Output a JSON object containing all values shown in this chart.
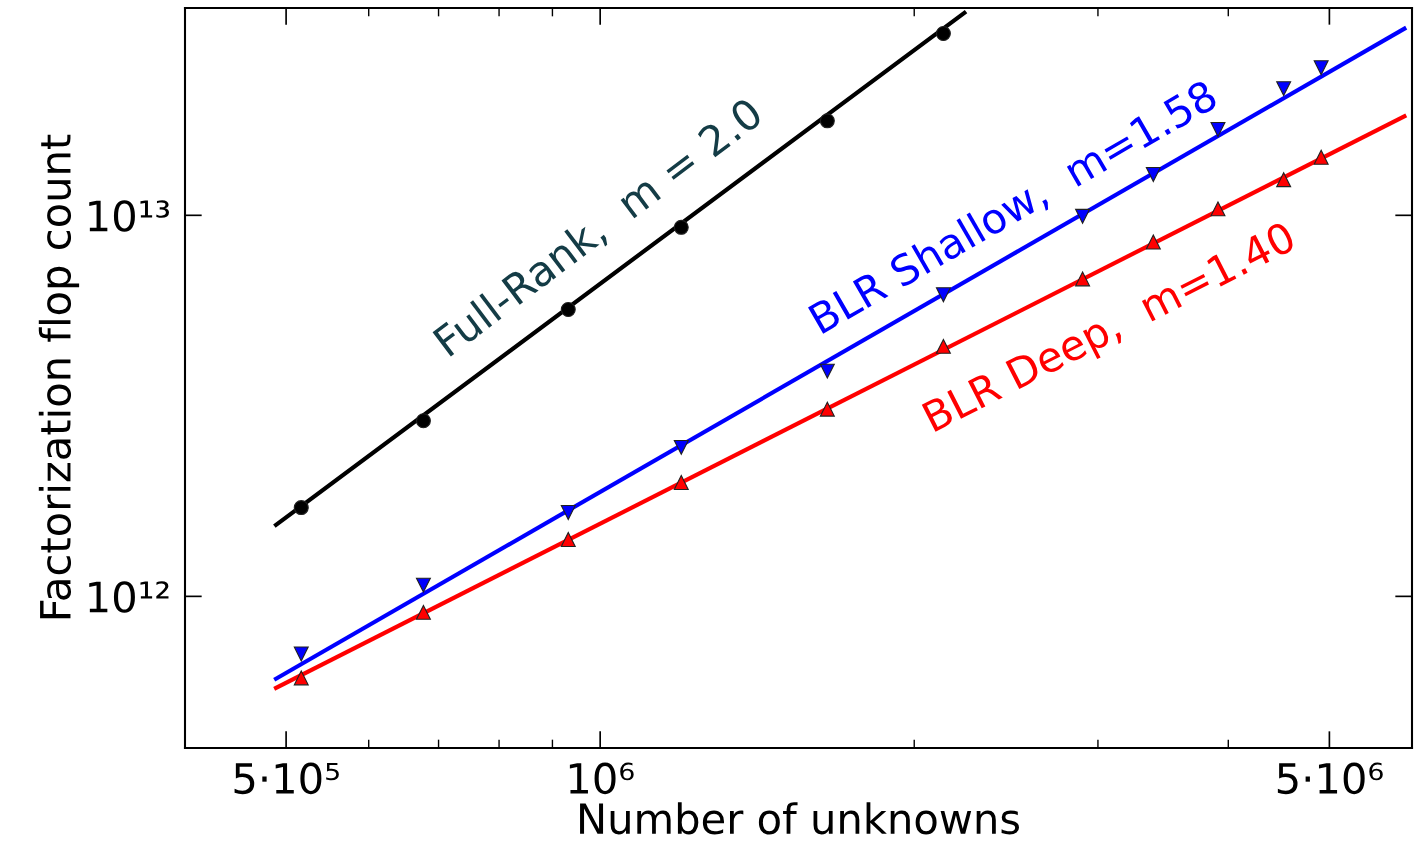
{
  "chart_data": {
    "type": "scatter",
    "xlabel": "Number of unknowns",
    "ylabel": "Factorization flop count",
    "log": "xy",
    "grid": false,
    "legend": false,
    "xlim": [
      400000,
      6000000
    ],
    "ylim": [
      400000000000,
      35000000000000
    ],
    "xticks": [
      {
        "value": 500000,
        "label": "5·10⁵"
      },
      {
        "value": 1000000,
        "label": "10⁶"
      },
      {
        "value": 5000000,
        "label": "5·10⁶"
      }
    ],
    "yticks": [
      {
        "value": 1000000000000,
        "label": "10¹²"
      },
      {
        "value": 10000000000000,
        "label": "10¹³"
      }
    ],
    "series": [
      {
        "type": "line",
        "color": "#000000",
        "marker": "none",
        "x": [
          489000,
          2234000
        ],
        "values": [
          1540000000000,
          34000000000000
        ]
      },
      {
        "type": "line",
        "color": "#0000ff",
        "marker": "none",
        "x": [
          489000,
          5900000
        ],
        "values": [
          608000000000,
          30900000000000
        ]
      },
      {
        "type": "line",
        "color": "#ff0000",
        "marker": "none",
        "x": [
          489000,
          5900000
        ],
        "values": [
          575000000000,
          18200000000000
        ]
      },
      {
        "color": "#000000",
        "marker": "circle",
        "x": [
          517000,
          677000,
          932000,
          1196000,
          1651000,
          2133000
        ],
        "values": [
          1710000000000,
          2890000000000,
          5660000000000,
          9300000000000,
          17700000000000,
          30000000000000
        ]
      },
      {
        "color": "#0000ff",
        "x": [
          517000,
          677000,
          932000,
          1196000,
          1651000,
          2133000,
          2900000,
          3390000,
          3910000,
          4520000,
          4910000
        ],
        "values": [
          706000000000,
          1070000000000,
          1660000000000,
          2460000000000,
          3900000000000,
          6190000000000,
          9940000000000,
          12800000000000,
          16800000000000,
          21500000000000,
          24400000000000
        ]
      },
      {
        "color": "#ff0000",
        "marker": "triangle",
        "x": [
          517000,
          677000,
          932000,
          1196000,
          1651000,
          2133000,
          2900000,
          3390000,
          3910000,
          4520000,
          4910000
        ],
        "values": [
          611000000000,
          908000000000,
          1410000000000,
          1990000000000,
          3100000000000,
          4530000000000,
          6810000000000,
          8510000000000,
          10400000000000,
          12400000000000,
          14200000000000
        ]
      }
    ],
    "annotations": [
      "Full-Rank,  m = 2.0",
      "BLR Shallow,  m=1.58",
      "BLR Deep,  m=1.40"
    ]
  }
}
